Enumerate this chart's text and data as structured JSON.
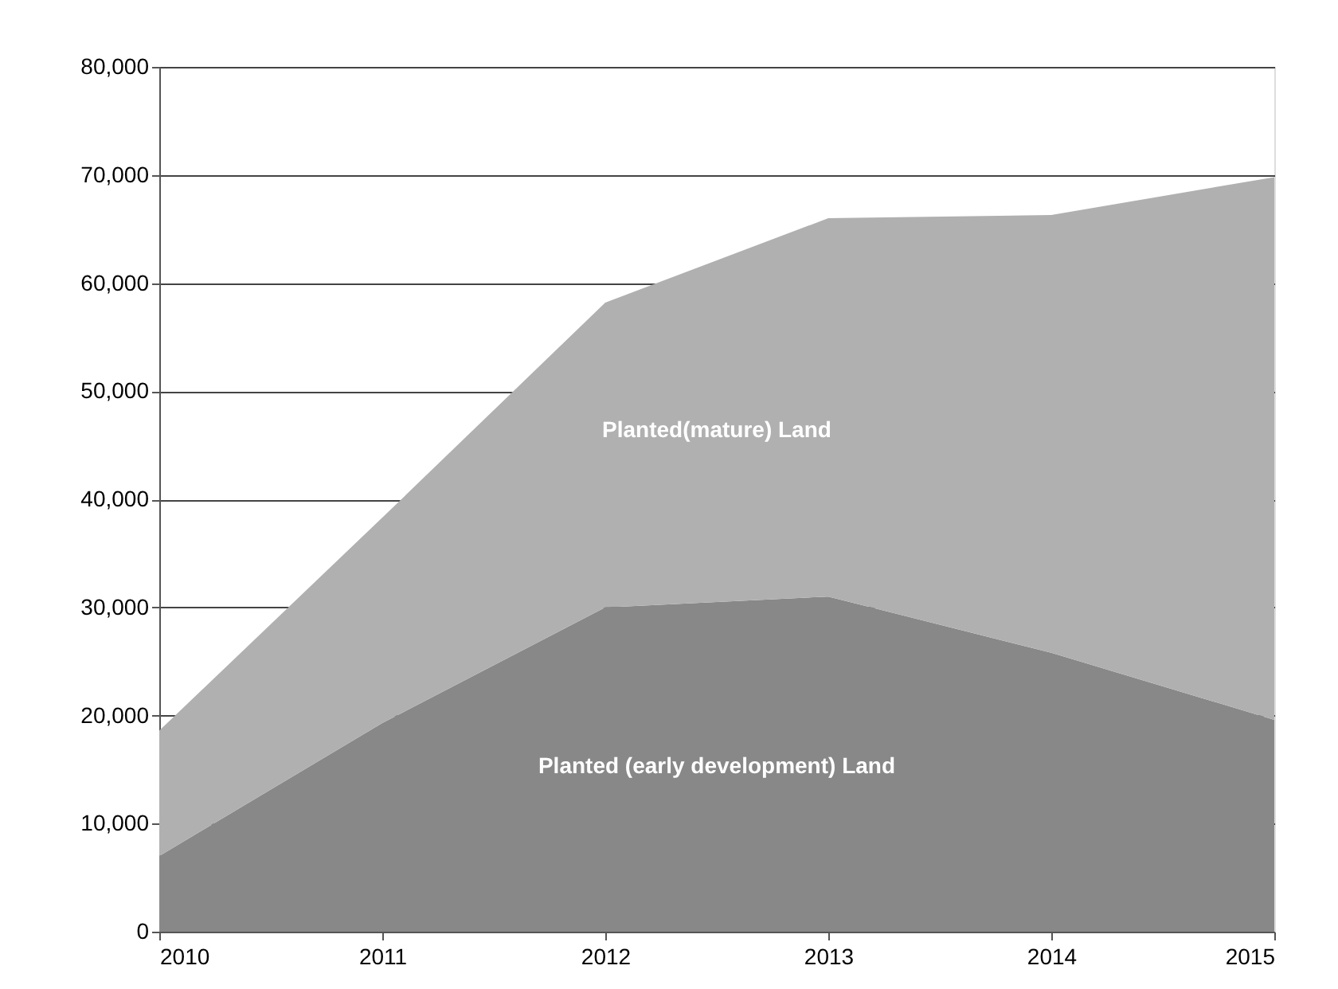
{
  "chart_data": {
    "type": "area",
    "stacked": true,
    "x": [
      2010,
      2011,
      2012,
      2013,
      2014,
      2015
    ],
    "series": [
      {
        "name": "Planted (early development) Land",
        "color": "#888888",
        "values": [
          7000,
          19300,
          30000,
          31000,
          25800,
          19600
        ]
      },
      {
        "name": "Planted(mature) Land",
        "color": "#b0b0b0",
        "values": [
          11600,
          19000,
          28200,
          35000,
          40500,
          50200
        ]
      }
    ],
    "xlim": [
      2010,
      2015
    ],
    "xticks": [
      {
        "value": 2010,
        "label": "2010"
      },
      {
        "value": 2011,
        "label": "2011"
      },
      {
        "value": 2012,
        "label": "2012"
      },
      {
        "value": 2013,
        "label": "2013"
      },
      {
        "value": 2014,
        "label": "2014"
      },
      {
        "value": 2015,
        "label": "2015"
      }
    ],
    "ylim": [
      0,
      80000
    ],
    "yticks": [
      {
        "value": 0,
        "label": "0"
      },
      {
        "value": 10000,
        "label": "10,000"
      },
      {
        "value": 20000,
        "label": "20,000"
      },
      {
        "value": 30000,
        "label": "30,000"
      },
      {
        "value": 40000,
        "label": "40,000"
      },
      {
        "value": 50000,
        "label": "50,000"
      },
      {
        "value": 60000,
        "label": "60,000"
      },
      {
        "value": 70000,
        "label": "70,000"
      },
      {
        "value": 80000,
        "label": "80,000"
      }
    ],
    "grid": "y",
    "legend": false
  }
}
